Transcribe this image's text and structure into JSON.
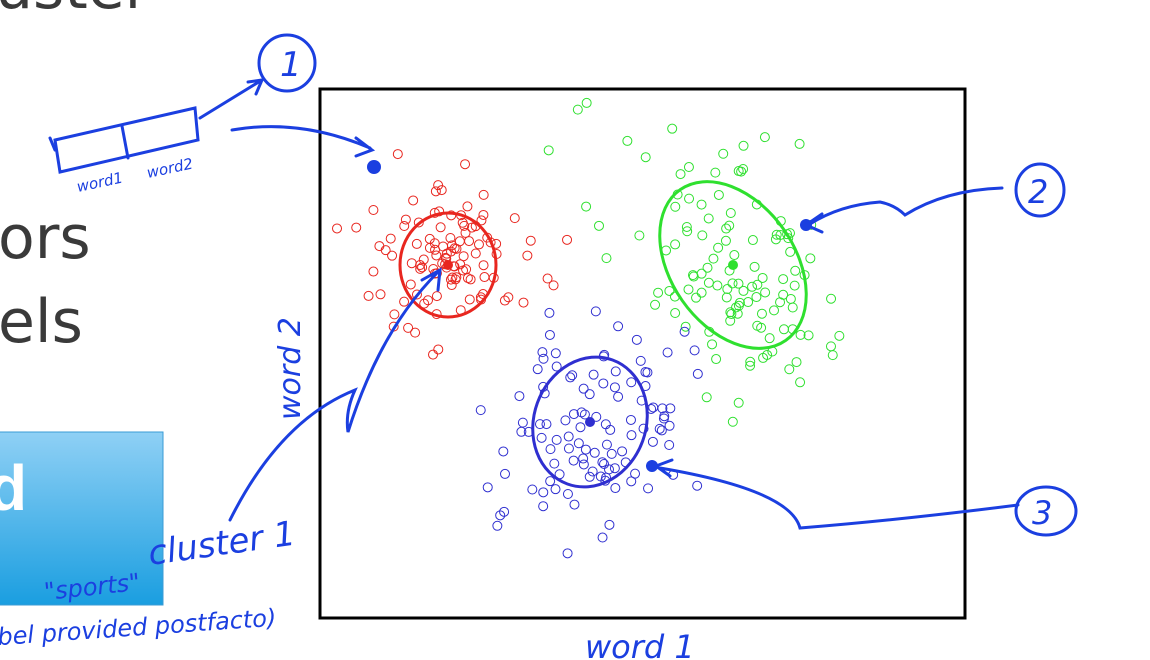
{
  "slide": {
    "fragments": [
      "uster",
      "ors",
      "els",
      "d"
    ]
  },
  "annotations": {
    "feature_box": [
      "word1",
      "word2"
    ],
    "markers": [
      "1",
      "2",
      "3"
    ],
    "y_axis": "word 2",
    "x_axis": "word 1",
    "cluster_label": "cluster 1",
    "cluster_name": "\"sports\"",
    "cluster_note": "bel provided postfacto)"
  }
}
